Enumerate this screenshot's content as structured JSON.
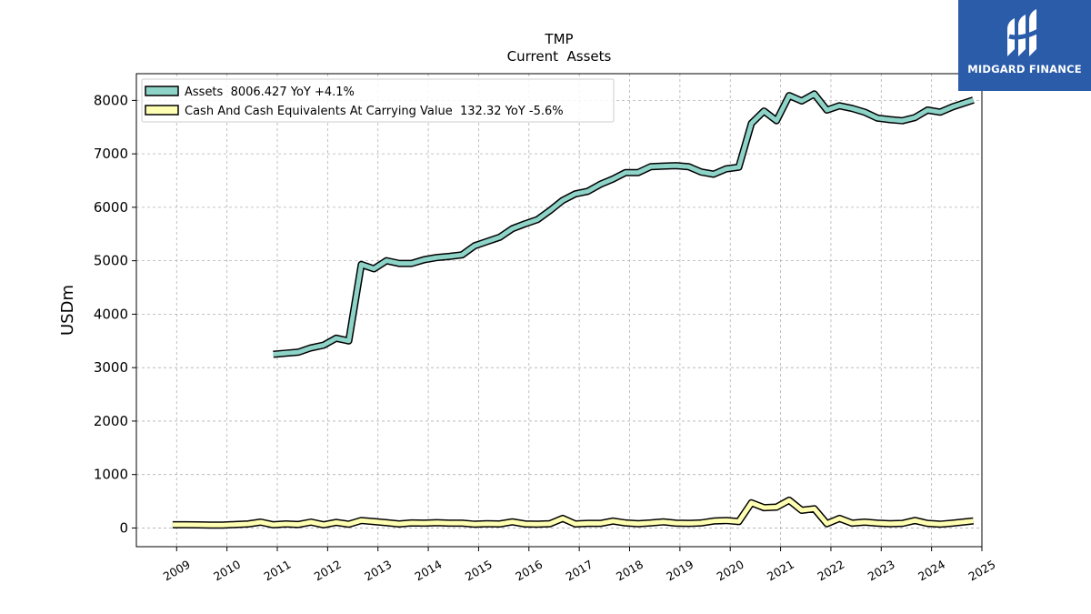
{
  "chart_data": {
    "type": "line",
    "title": "TMP",
    "subtitle": "Current  Assets",
    "ylabel": "USDm",
    "xlabel": "",
    "ylim": [
      -350,
      8500
    ],
    "xlim": [
      2008.2,
      2025.0
    ],
    "yticks": [
      0,
      1000,
      2000,
      3000,
      4000,
      5000,
      6000,
      7000,
      8000
    ],
    "xticks": [
      "2009",
      "2010",
      "2011",
      "2012",
      "2013",
      "2014",
      "2015",
      "2016",
      "2017",
      "2018",
      "2019",
      "2020",
      "2021",
      "2022",
      "2023",
      "2024",
      "2025"
    ],
    "grid": true,
    "legend_position": "top-left",
    "series": [
      {
        "name": "Assets  8006.427 YoY +4.1%",
        "color": "#8dd3c7",
        "x": [
          2010.92,
          2011.17,
          2011.42,
          2011.67,
          2011.92,
          2012.17,
          2012.42,
          2012.67,
          2012.92,
          2013.17,
          2013.42,
          2013.67,
          2013.92,
          2014.17,
          2014.42,
          2014.67,
          2014.92,
          2015.17,
          2015.42,
          2015.67,
          2015.92,
          2016.17,
          2016.42,
          2016.67,
          2016.92,
          2017.17,
          2017.42,
          2017.67,
          2017.92,
          2018.17,
          2018.42,
          2018.67,
          2018.92,
          2019.17,
          2019.42,
          2019.67,
          2019.92,
          2020.17,
          2020.42,
          2020.67,
          2020.92,
          2021.17,
          2021.42,
          2021.67,
          2021.92,
          2022.17,
          2022.42,
          2022.67,
          2022.92,
          2023.17,
          2023.42,
          2023.67,
          2023.92,
          2024.17,
          2024.42,
          2024.83
        ],
        "values": [
          3250,
          3270,
          3290,
          3370,
          3420,
          3550,
          3500,
          4930,
          4850,
          5000,
          4950,
          4950,
          5020,
          5060,
          5080,
          5110,
          5280,
          5360,
          5440,
          5600,
          5690,
          5770,
          5940,
          6130,
          6250,
          6300,
          6430,
          6530,
          6650,
          6650,
          6760,
          6770,
          6780,
          6760,
          6660,
          6620,
          6720,
          6750,
          7570,
          7800,
          7620,
          8090,
          7990,
          8120,
          7820,
          7900,
          7850,
          7780,
          7670,
          7640,
          7620,
          7680,
          7820,
          7780,
          7880,
          8006
        ]
      },
      {
        "name": "Cash And Cash Equivalents At Carrying Value  132.32 YoY -5.6%",
        "color": "#ffffb3",
        "x": [
          2008.92,
          2009.17,
          2009.42,
          2009.67,
          2009.92,
          2010.17,
          2010.42,
          2010.67,
          2010.92,
          2011.17,
          2011.42,
          2011.67,
          2011.92,
          2012.17,
          2012.42,
          2012.67,
          2012.92,
          2013.17,
          2013.42,
          2013.67,
          2013.92,
          2014.17,
          2014.42,
          2014.67,
          2014.92,
          2015.17,
          2015.42,
          2015.67,
          2015.92,
          2016.17,
          2016.42,
          2016.67,
          2016.92,
          2017.17,
          2017.42,
          2017.67,
          2017.92,
          2018.17,
          2018.42,
          2018.67,
          2018.92,
          2019.17,
          2019.42,
          2019.67,
          2019.92,
          2020.17,
          2020.42,
          2020.67,
          2020.92,
          2021.17,
          2021.42,
          2021.67,
          2021.92,
          2022.17,
          2022.42,
          2022.67,
          2022.92,
          2023.17,
          2023.42,
          2023.67,
          2023.92,
          2024.17,
          2024.42,
          2024.83
        ],
        "values": [
          60,
          60,
          58,
          55,
          55,
          65,
          75,
          110,
          60,
          75,
          65,
          110,
          60,
          105,
          70,
          140,
          120,
          100,
          75,
          95,
          90,
          100,
          90,
          90,
          70,
          80,
          75,
          115,
          75,
          70,
          80,
          180,
          75,
          85,
          85,
          130,
          95,
          80,
          95,
          115,
          90,
          85,
          95,
          130,
          140,
          120,
          470,
          380,
          390,
          520,
          330,
          360,
          80,
          180,
          90,
          110,
          90,
          80,
          85,
          140,
          85,
          70,
          90,
          132
        ]
      }
    ]
  },
  "logo": {
    "text": "MIDGARD FINANCE"
  }
}
